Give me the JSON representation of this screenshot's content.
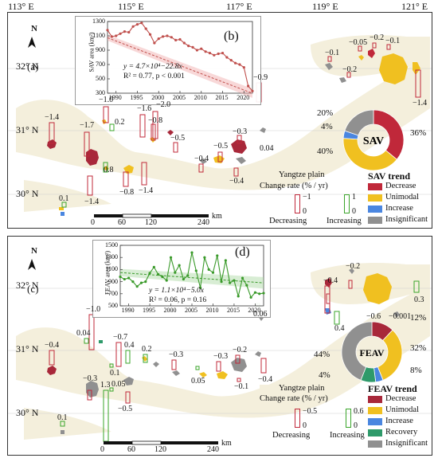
{
  "coords": {
    "top_lon": [
      "113° E",
      "115° E",
      "117° E",
      "119° E",
      "121° E"
    ],
    "lat": [
      "32° N",
      "31° N",
      "30° N"
    ]
  },
  "panelA": {
    "letter_a": "(a)",
    "letter_b": "(b)",
    "north": "N",
    "inset": {
      "ylabel": "SAV area (km²)",
      "eq1": "y = 4.7×10⁴−22.8x",
      "eq2": "R² = 0.77, p < 0.001",
      "yticks": [
        "1300",
        "1100",
        "900",
        "700",
        "500",
        "300"
      ],
      "xticks": [
        "1990",
        "1995",
        "2000",
        "2005",
        "2010",
        "2015",
        "2020"
      ]
    },
    "rates": [
      "−1.4",
      "−1.0",
      "0.2",
      "−1.6",
      "−2.0",
      "−0.8",
      "−0.5",
      "−1.7",
      "0.8",
      "−1.4",
      "−0.8",
      "−1.4",
      "−0.4",
      "−0.5",
      "−0.3",
      "−0.4",
      "0.04",
      "−0.9",
      "−0.1",
      "−0.05",
      "−0.2",
      "−0.1",
      "−0.2",
      "−1.4",
      "0.1"
    ],
    "donut": {
      "center": "SAV",
      "labels": [
        "20%",
        "4%",
        "36%",
        "40%"
      ],
      "slices": [
        {
          "name": "Decrease",
          "value": 36,
          "color": "#c0283a"
        },
        {
          "name": "Unimodal",
          "value": 40,
          "color": "#f0c020"
        },
        {
          "name": "Increase",
          "value": 4,
          "color": "#4a86e0"
        },
        {
          "name": "Insignificant",
          "value": 20,
          "color": "#909090"
        }
      ]
    },
    "legend": {
      "plain": "Yangtze plain",
      "change_rate": "Change rate (% / yr)",
      "dec_top": "−1",
      "dec_zero": "0",
      "dec_label": "Decreasing",
      "inc_top": "1",
      "inc_zero": "0",
      "inc_label": "Increasing",
      "trend_title": "SAV trend",
      "trend_items": [
        "Decrease",
        "Unimodal",
        "Increase",
        "Insignificant"
      ]
    },
    "scale": [
      "0",
      "60",
      "120",
      "240"
    ],
    "scale_unit": "km"
  },
  "panelC": {
    "letter_c": "(c)",
    "letter_d": "(d)",
    "north": "N",
    "inset": {
      "ylabel": "FEAV area (km²)",
      "eq1": "y = 1.1×10⁴−5.0x",
      "eq2": "R² = 0.06, p = 0.16",
      "yticks": [
        "1500",
        "1300",
        "1100",
        "900",
        "700",
        "500"
      ],
      "xticks": [
        "1990",
        "1995",
        "2000",
        "2005",
        "2010",
        "2015",
        "2020"
      ]
    },
    "rates": [
      "−0.4",
      "−1.0",
      "0.04",
      "−0.7",
      "0.4",
      "0.2",
      "−0.3",
      "−0.3",
      "−0.2",
      "−0.1",
      "0.05",
      "1.3",
      "0.05",
      "0.1",
      "−0.5",
      "−0.3",
      "−0.4",
      "−0.4",
      "−0.2",
      "0.3",
      "0.4",
      "−0.6",
      "−0.001",
      "0.06",
      "0.1"
    ],
    "donut": {
      "center": "FEAV",
      "labels": [
        "12%",
        "32%",
        "8%",
        "4%",
        "44%"
      ],
      "slices": [
        {
          "name": "Decrease",
          "value": 12,
          "color": "#a8283a"
        },
        {
          "name": "Unimodal",
          "value": 32,
          "color": "#f0c020"
        },
        {
          "name": "Increase",
          "value": 4,
          "color": "#4a86e0"
        },
        {
          "name": "Recovery",
          "value": 8,
          "color": "#2e9a6a"
        },
        {
          "name": "Insignificant",
          "value": 44,
          "color": "#909090"
        }
      ]
    },
    "legend": {
      "plain": "Yangtze plain",
      "change_rate": "Change rate (% / yr)",
      "dec_top": "−0.5",
      "dec_zero": "0",
      "dec_label": "Decreasing",
      "inc_top": "0.6",
      "inc_zero": "0",
      "inc_label": "Increasing",
      "trend_title": "FEAV trend",
      "trend_items": [
        "Decrease",
        "Unimodal",
        "Increase",
        "Recovery",
        "Insignificant"
      ]
    },
    "scale": [
      "0",
      "60",
      "120",
      "240"
    ],
    "scale_unit": "km"
  },
  "chart_data": [
    {
      "type": "line",
      "title": "",
      "ylabel": "SAV area (km²)",
      "xlim": [
        1988,
        2022
      ],
      "ylim": [
        300,
        1300
      ],
      "x": [
        1988,
        1989,
        1990,
        1991,
        1992,
        1993,
        1994,
        1995,
        1996,
        1997,
        1998,
        1999,
        2000,
        2001,
        2002,
        2003,
        2004,
        2005,
        2006,
        2007,
        2008,
        2009,
        2010,
        2011,
        2012,
        2013,
        2014,
        2015,
        2016,
        2017,
        2018,
        2019,
        2020,
        2021,
        2022
      ],
      "series": [
        {
          "values": [
            1180,
            1090,
            1100,
            1130,
            1160,
            1150,
            1230,
            1260,
            1280,
            1200,
            1120,
            1000,
            1060,
            1090,
            1100,
            1080,
            1040,
            1050,
            1000,
            960,
            940,
            900,
            920,
            880,
            860,
            830,
            850,
            860,
            800,
            760,
            720,
            700,
            660,
            400,
            330
          ]
        }
      ],
      "trend": {
        "eq": "y = 4.7×10⁴−22.8x",
        "stats": "R² = 0.77, p < 0.001"
      }
    },
    {
      "type": "line",
      "title": "",
      "ylabel": "FEAV area (km²)",
      "xlim": [
        1988,
        2022
      ],
      "ylim": [
        500,
        1500
      ],
      "x": [
        1988,
        1989,
        1990,
        1991,
        1992,
        1993,
        1994,
        1995,
        1996,
        1997,
        1998,
        1999,
        2000,
        2001,
        2002,
        2003,
        2004,
        2005,
        2006,
        2007,
        2008,
        2009,
        2010,
        2011,
        2012,
        2013,
        2014,
        2015,
        2016,
        2017,
        2018,
        2019,
        2020,
        2021,
        2022
      ],
      "series": [
        {
          "values": [
            980,
            940,
            960,
            900,
            820,
            880,
            900,
            1040,
            1140,
            1020,
            980,
            920,
            1300,
            1050,
            1170,
            940,
            1000,
            1380,
            1080,
            800,
            1300,
            1100,
            1050,
            1330,
            900,
            1250,
            880,
            920,
            660,
            960,
            840,
            640,
            720,
            700,
            710
          ]
        }
      ],
      "trend": {
        "eq": "y = 1.1×10⁴−5.0x",
        "stats": "R² = 0.06, p = 0.16"
      }
    }
  ]
}
